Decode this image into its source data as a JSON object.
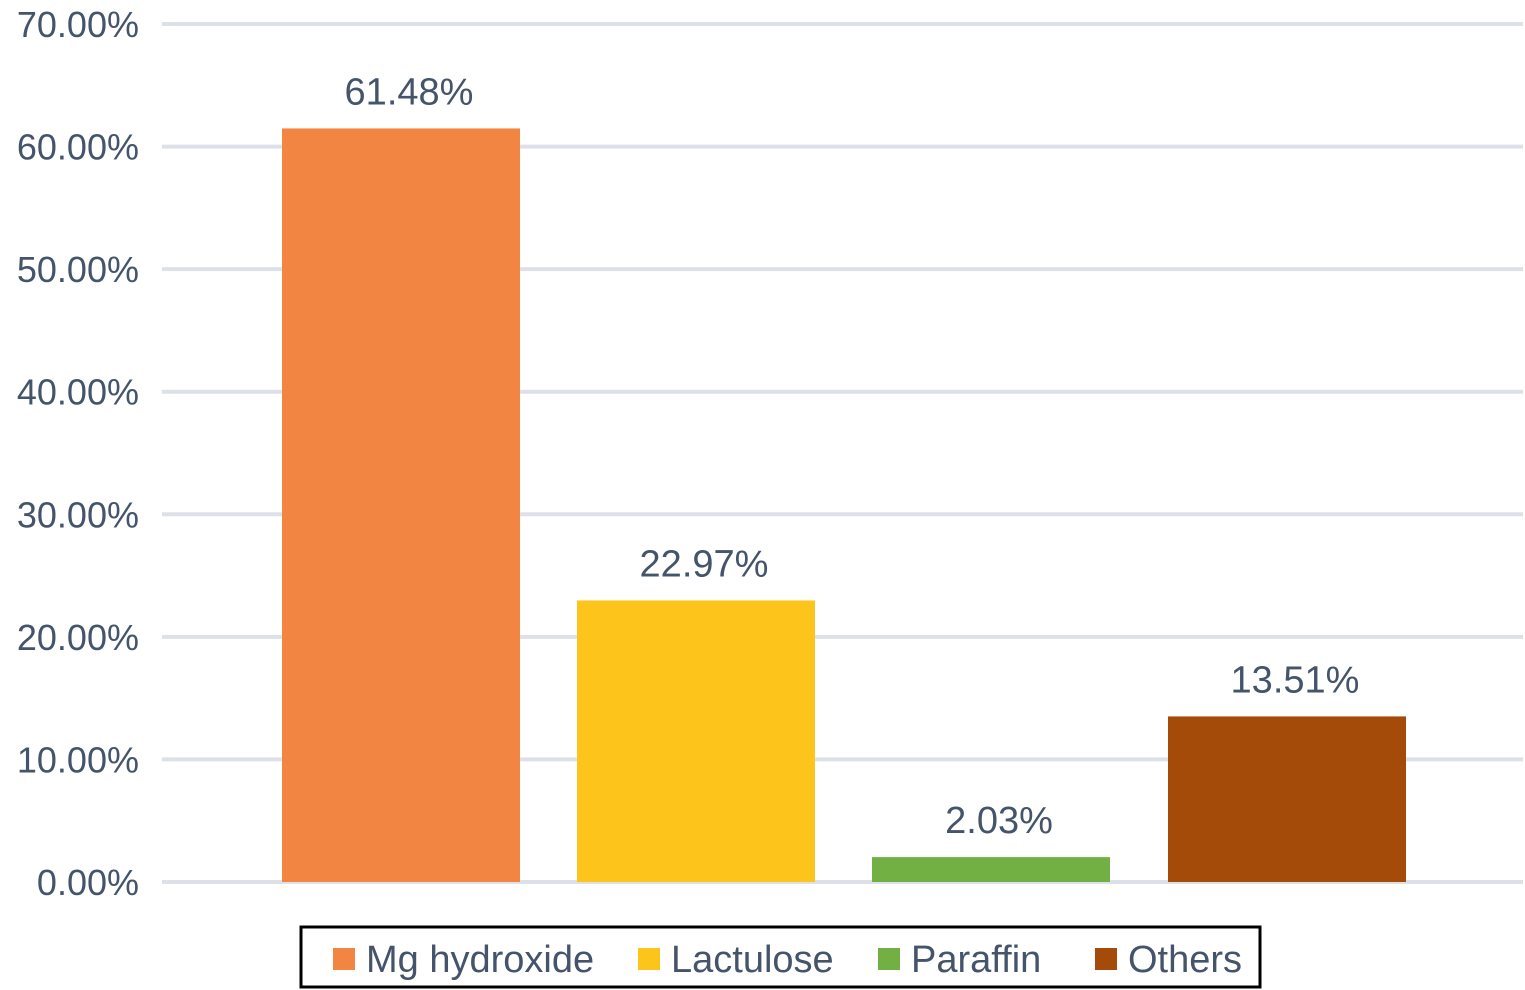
{
  "chart_data": {
    "type": "bar",
    "categories": [
      "Mg hydroxide",
      "Lactulose",
      "Paraffin",
      "Others"
    ],
    "values": [
      61.48,
      22.97,
      2.03,
      13.51
    ],
    "data_labels": [
      "61.48%",
      "22.97%",
      "2.03%",
      "13.51%"
    ],
    "colors": [
      "#f28541",
      "#fdc41b",
      "#72b043",
      "#a54b0a"
    ],
    "ylim": [
      0,
      70
    ],
    "yticks": [
      0,
      10,
      20,
      30,
      40,
      50,
      60,
      70
    ],
    "ytick_labels": [
      "0.00%",
      "10.00%",
      "20.00%",
      "30.00%",
      "40.00%",
      "50.00%",
      "60.00%",
      "70.00%"
    ],
    "title": "",
    "xlabel": "",
    "ylabel": "",
    "grid": true,
    "legend": {
      "placement": "bottom",
      "entries": [
        "Mg hydroxide",
        "Lactulose",
        "Paraffin",
        "Others"
      ]
    },
    "grid_color": "#dde1e7",
    "text_color": "#44546a"
  }
}
